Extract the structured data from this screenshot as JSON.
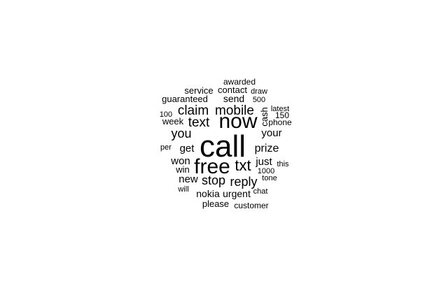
{
  "wordcloud": {
    "words": [
      {
        "text": "call"
      },
      {
        "text": "now"
      },
      {
        "text": "free"
      },
      {
        "text": "txt"
      },
      {
        "text": "mobile"
      },
      {
        "text": "claim"
      },
      {
        "text": "text"
      },
      {
        "text": "stop"
      },
      {
        "text": "reply"
      },
      {
        "text": "you"
      },
      {
        "text": "prize"
      },
      {
        "text": "get"
      },
      {
        "text": "your"
      },
      {
        "text": "won"
      },
      {
        "text": "just"
      },
      {
        "text": "new"
      },
      {
        "text": "win"
      },
      {
        "text": "send"
      },
      {
        "text": "nokia"
      },
      {
        "text": "urgent"
      },
      {
        "text": "service"
      },
      {
        "text": "contact"
      },
      {
        "text": "guaranteed"
      },
      {
        "text": "cash"
      },
      {
        "text": "please"
      },
      {
        "text": "customer"
      },
      {
        "text": "week"
      },
      {
        "text": "phone"
      },
      {
        "text": "awarded"
      },
      {
        "text": "draw"
      },
      {
        "text": "500"
      },
      {
        "text": "latest"
      },
      {
        "text": "150"
      },
      {
        "text": "100"
      },
      {
        "text": "per"
      },
      {
        "text": "1000"
      },
      {
        "text": "this"
      },
      {
        "text": "tone"
      },
      {
        "text": "will"
      },
      {
        "text": "chat"
      }
    ]
  }
}
